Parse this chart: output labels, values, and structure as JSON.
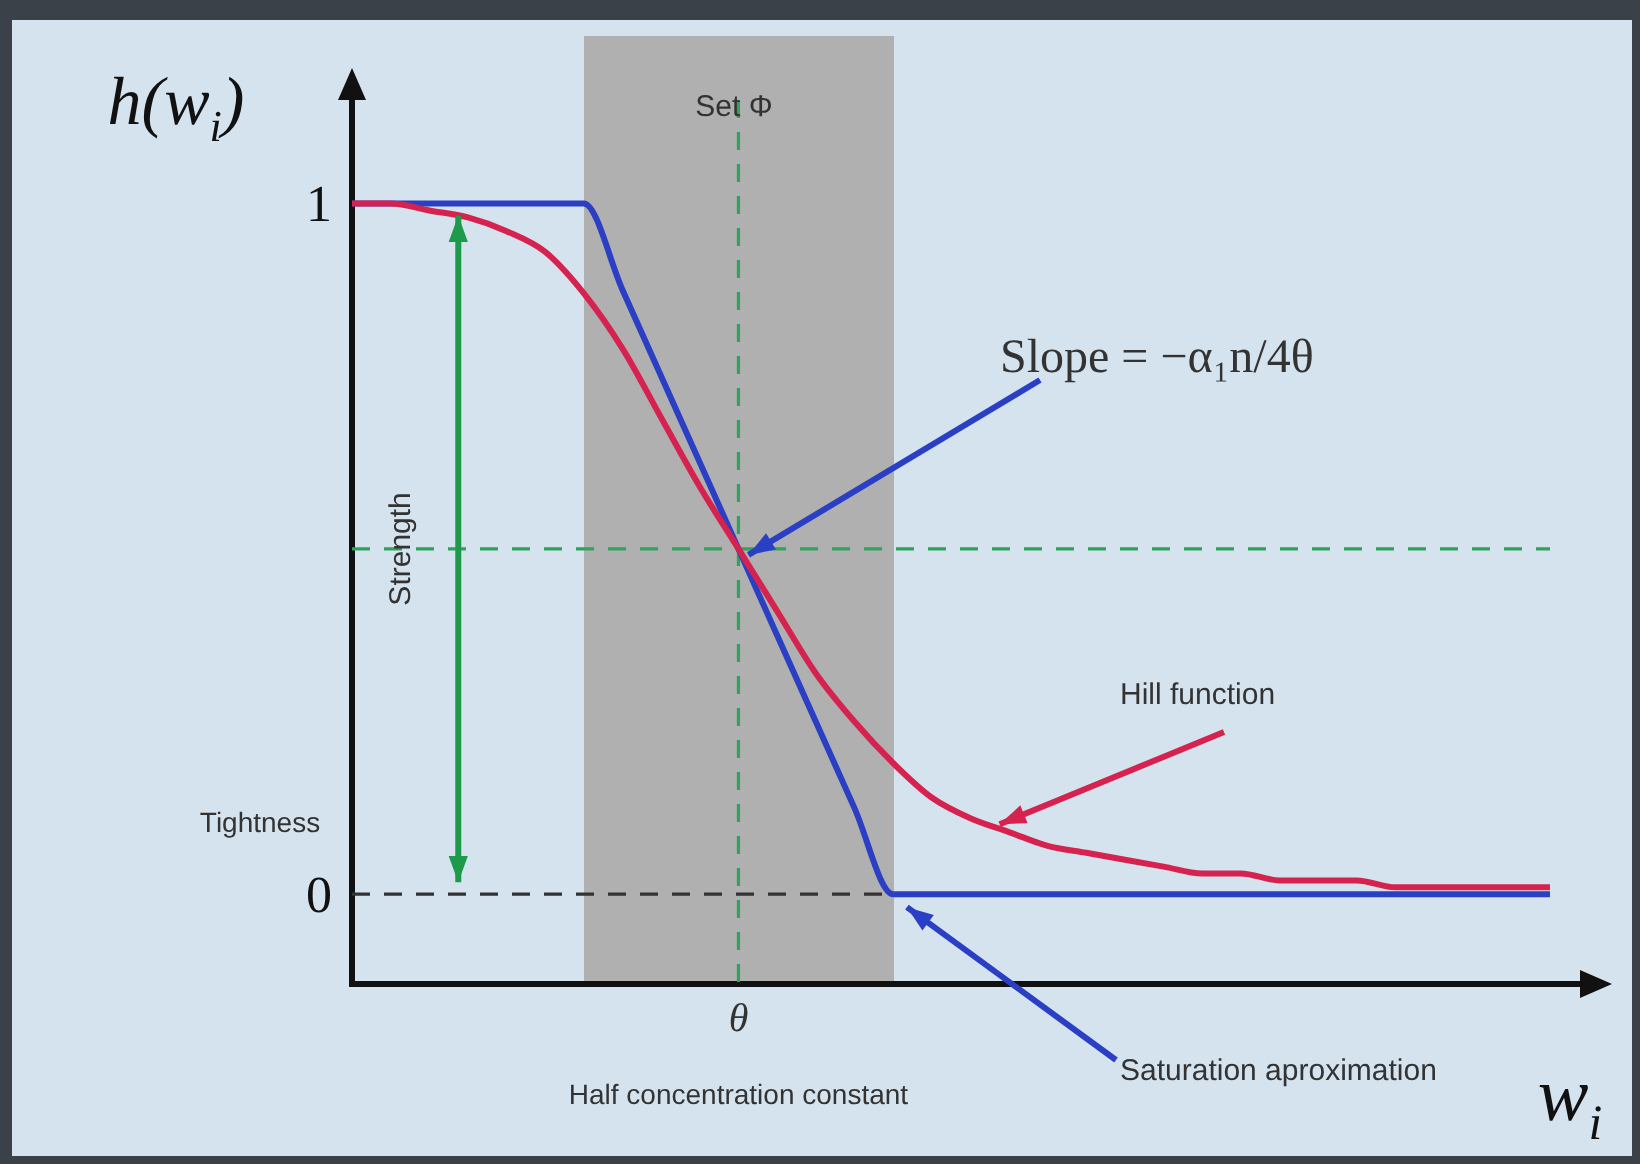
{
  "chart_data": {
    "type": "line",
    "ylabel": "h(w$_{i}$)",
    "xlabel": "w$_{i}$",
    "categories": [
      null,
      null,
      null,
      null,
      null,
      null,
      null,
      null,
      null,
      null,
      "θ",
      null,
      null,
      null,
      null,
      null,
      null,
      null,
      null,
      null,
      null,
      null,
      null,
      null,
      null,
      null,
      null,
      null,
      null,
      null,
      null,
      null
    ],
    "ylim": [
      -0.13,
      1.15
    ],
    "yticks": [
      0,
      1
    ],
    "grid": false,
    "legend": false,
    "marker": "none",
    "line_style": "solid",
    "series": [
      {
        "color": "#d6224e",
        "values": [
          1,
          1,
          0.99,
          0.98,
          0.96,
          0.93,
          0.87,
          0.79,
          0.69,
          0.59,
          0.5,
          0.41,
          0.32,
          0.25,
          0.19,
          0.14,
          0.11,
          0.09,
          0.07,
          0.06,
          0.05,
          0.04,
          0.03,
          0.03,
          0.02,
          0.02,
          0.02,
          0.01,
          0.01,
          0.01,
          0.01,
          0.01
        ]
      },
      {
        "color": "#2b3fc4",
        "values": [
          1,
          1,
          1,
          1,
          1,
          1,
          1,
          0.875,
          0.75,
          0.625,
          0.5,
          0.375,
          0.25,
          0.125,
          0,
          0,
          0,
          0,
          0,
          0,
          0,
          0,
          0,
          0,
          0,
          0,
          0,
          0,
          0,
          0,
          0,
          0
        ]
      }
    ],
    "ref_lines": [
      {
        "axis": "y",
        "value": 0,
        "color": "#333333",
        "line_style": "dashed"
      },
      {
        "axis": "y",
        "value": 0.5,
        "color": "#2fa35a",
        "line_style": "dashed"
      },
      {
        "axis": "x",
        "value": "θ",
        "color": "#2fa35a",
        "line_style": "dashed"
      }
    ],
    "annotations": [
      "Slope = −α₁n/4θ",
      "Hill function",
      "Saturation aproximation",
      "Strength",
      "Tightness",
      "Half concentration constant",
      "Set Φ"
    ]
  }
}
